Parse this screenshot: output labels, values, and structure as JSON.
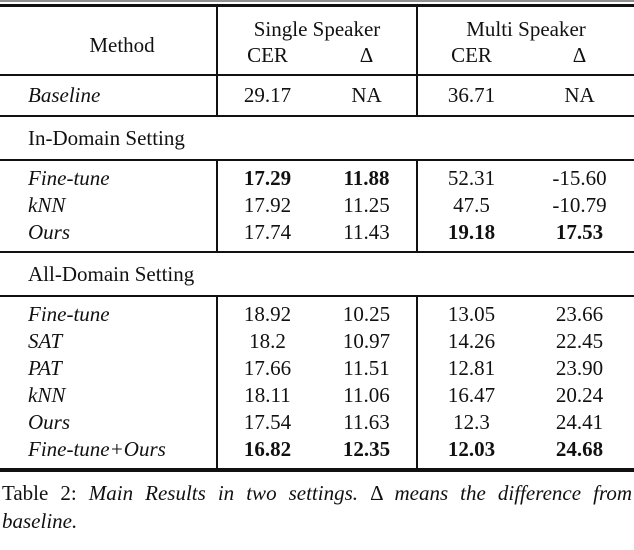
{
  "page": {
    "background_color": "#ffffff",
    "text_color": "#111111",
    "rule_color": "#111111"
  },
  "table": {
    "header": {
      "method": "Method",
      "groups": [
        {
          "label": "Single Speaker",
          "columns": [
            "CER",
            "Δ"
          ]
        },
        {
          "label": "Multi Speaker",
          "columns": [
            "CER",
            "Δ"
          ]
        }
      ]
    },
    "baseline": {
      "method": "Baseline",
      "values": [
        "29.17",
        "NA",
        "36.71",
        "NA"
      ],
      "bold_value_indices": []
    },
    "sections": [
      {
        "title": "In-Domain Setting",
        "rows": [
          {
            "method": "Fine-tune",
            "values": [
              "17.29",
              "11.88",
              "52.31",
              "-15.60"
            ],
            "bold_value_indices": [
              0,
              1
            ]
          },
          {
            "method": "kNN",
            "values": [
              "17.92",
              "11.25",
              "47.5",
              "-10.79"
            ],
            "bold_value_indices": []
          },
          {
            "method": "Ours",
            "values": [
              "17.74",
              "11.43",
              "19.18",
              "17.53"
            ],
            "bold_value_indices": [
              2,
              3
            ]
          }
        ]
      },
      {
        "title": "All-Domain Setting",
        "rows": [
          {
            "method": "Fine-tune",
            "values": [
              "18.92",
              "10.25",
              "13.05",
              "23.66"
            ],
            "bold_value_indices": []
          },
          {
            "method": "SAT",
            "values": [
              "18.2",
              "10.97",
              "14.26",
              "22.45"
            ],
            "bold_value_indices": []
          },
          {
            "method": "PAT",
            "values": [
              "17.66",
              "11.51",
              "12.81",
              "23.90"
            ],
            "bold_value_indices": []
          },
          {
            "method": "kNN",
            "values": [
              "18.11",
              "11.06",
              "16.47",
              "20.24"
            ],
            "bold_value_indices": []
          },
          {
            "method": "Ours",
            "values": [
              "17.54",
              "11.63",
              "12.3",
              "24.41"
            ],
            "bold_value_indices": []
          },
          {
            "method": "Fine-tune+Ours",
            "values": [
              "16.82",
              "12.35",
              "12.03",
              "24.68"
            ],
            "bold_value_indices": [
              0,
              1,
              2,
              3
            ]
          }
        ]
      }
    ]
  },
  "caption": {
    "label": "Table 2:",
    "italic_part_1": "Main Results in two settings.",
    "delta_symbol": "Δ",
    "italic_part_2": "means the difference from baseline."
  }
}
